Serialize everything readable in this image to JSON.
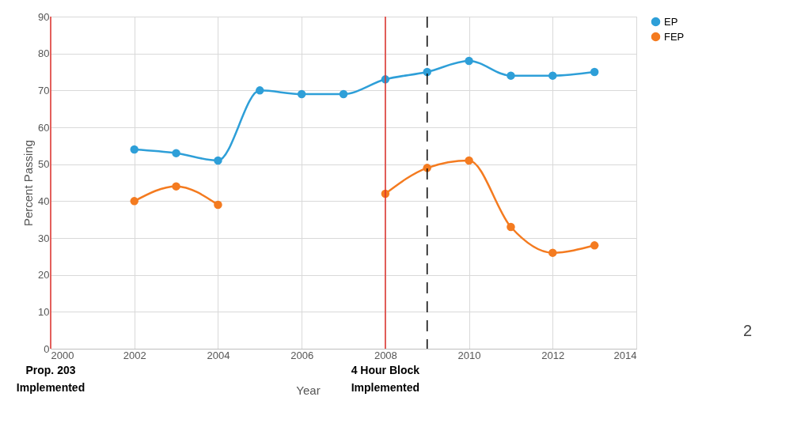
{
  "chart_data": {
    "type": "line",
    "xlabel": "Year",
    "ylabel": "Percent Passing",
    "x": [
      2002,
      2003,
      2004,
      2005,
      2006,
      2007,
      2008,
      2009,
      2010,
      2011,
      2012,
      2013
    ],
    "series": [
      {
        "name": "EP",
        "color": "#2e9fd8",
        "values": [
          54,
          53,
          51,
          70,
          69,
          69,
          73,
          75,
          78,
          74,
          74,
          75
        ]
      },
      {
        "name": "FEP",
        "color": "#f47b20",
        "values": [
          40,
          44,
          39,
          null,
          null,
          null,
          42,
          49,
          51,
          33,
          26,
          28
        ]
      }
    ],
    "xlim": [
      2000,
      2014
    ],
    "xticks": [
      2000,
      2002,
      2004,
      2006,
      2008,
      2010,
      2012,
      2014
    ],
    "ylim": [
      0,
      90
    ],
    "yticks": [
      0,
      10,
      20,
      30,
      40,
      50,
      60,
      70,
      80,
      90
    ],
    "grid": true,
    "legend": "right",
    "marker": "circle",
    "line_style": "solid",
    "ref_lines": [
      {
        "axis": "x",
        "value": 2000,
        "label": "Prop. 203\nImplemented",
        "color": "#e0312b"
      },
      {
        "axis": "x",
        "value": 2008,
        "label": "4 Hour Block\nImplemented",
        "color": "#e0312b"
      },
      {
        "axis": "x",
        "value": 2009,
        "color": "#000000",
        "line_style": "dashed"
      }
    ],
    "annotations": [
      "2"
    ]
  }
}
